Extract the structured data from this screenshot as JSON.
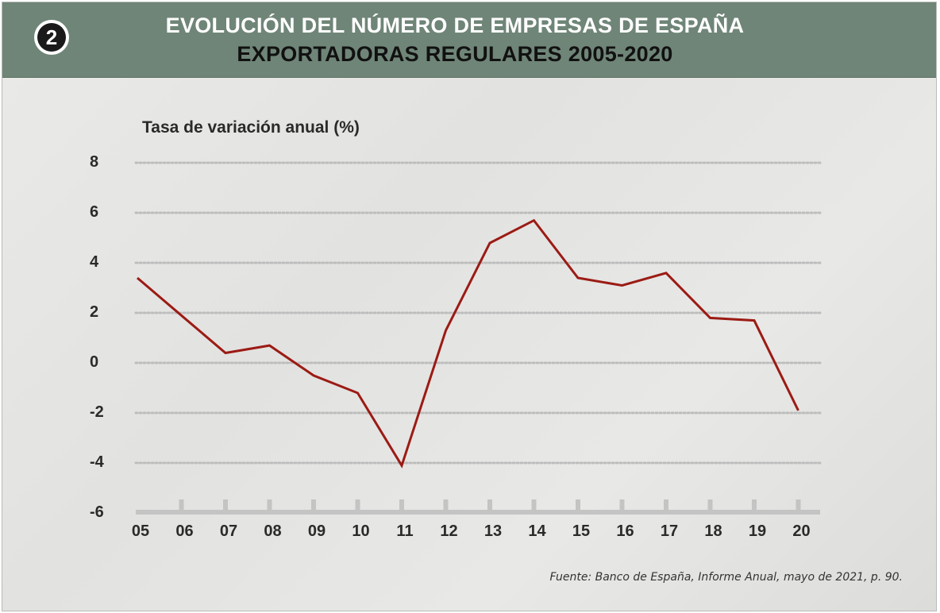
{
  "header": {
    "badge_number": "2",
    "title_line1": "EVOLUCIÓN DEL NÚMERO DE EMPRESAS DE ESPAÑA",
    "title_line2": "EXPORTADORAS REGULARES 2005-2020"
  },
  "source": "Fuente: Banco de España, Informe Anual, mayo de 2021, p. 90.",
  "colors": {
    "header_bg": "#6f8578",
    "line": "#9b1b14",
    "grid": "#bdbdbd",
    "axis": "#c4c4c4"
  },
  "chart_data": {
    "type": "line",
    "title": "EVOLUCIÓN DEL NÚMERO DE EMPRESAS DE ESPAÑA EXPORTADORAS REGULARES 2005-2020",
    "ylabel": "Tasa de variación anual (%)",
    "xlabel": "",
    "categories": [
      "05",
      "06",
      "07",
      "08",
      "09",
      "10",
      "11",
      "12",
      "13",
      "14",
      "15",
      "16",
      "17",
      "18",
      "19",
      "20"
    ],
    "series": [
      {
        "values": [
          3.3,
          1.8,
          0.3,
          0.6,
          -0.6,
          -1.3,
          -4.2,
          1.2,
          4.7,
          5.6,
          3.3,
          3.0,
          3.5,
          1.7,
          1.6,
          -2.0
        ]
      }
    ],
    "ylim": [
      -6,
      8
    ],
    "yticks": [
      "8",
      "6",
      "4",
      "2",
      "0",
      "-2",
      "-4",
      "-6"
    ],
    "grid": "horizontal dotted",
    "legend": "none"
  }
}
